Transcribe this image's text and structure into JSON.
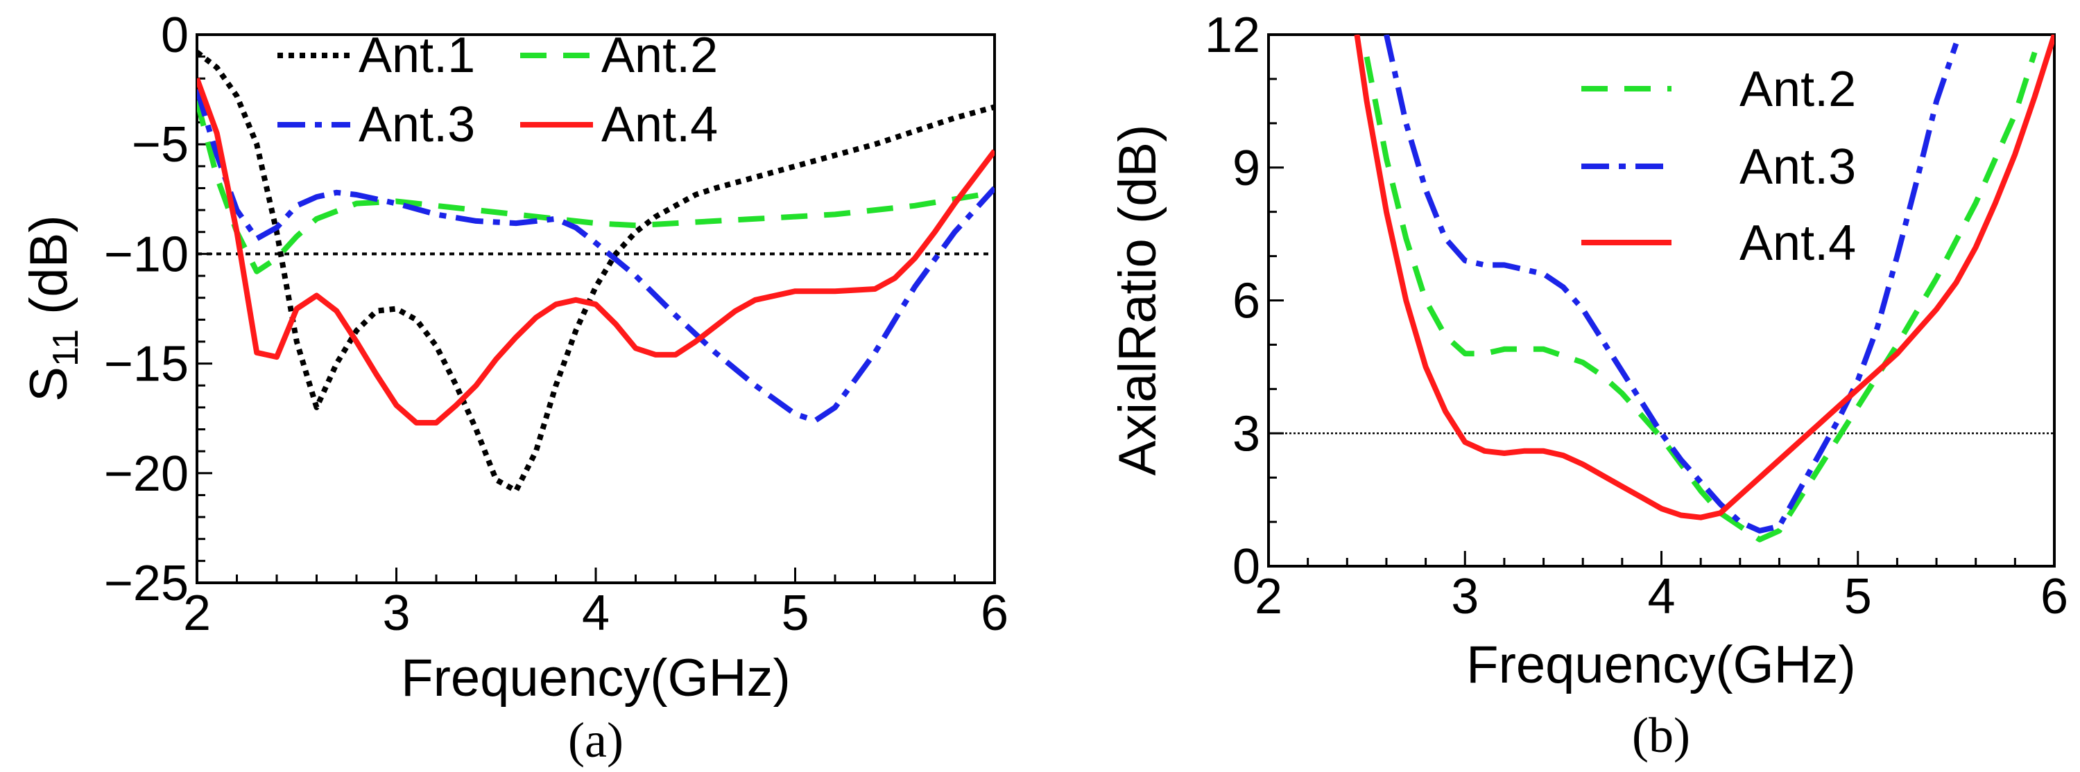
{
  "chart_data": [
    {
      "type": "line",
      "caption": "(a)",
      "xlabel": "Frequency(GHz)",
      "ylabel_main": "S",
      "ylabel_sub": "11",
      "ylabel_unit": " (dB)",
      "xlim": [
        2,
        6
      ],
      "ylim": [
        -25,
        0
      ],
      "xticks": [
        2,
        3,
        4,
        5,
        6
      ],
      "yticks": [
        0,
        -5,
        -10,
        -15,
        -20,
        -25
      ],
      "reference_line": -10,
      "series": [
        {
          "name": "Ant.1",
          "color": "#000000",
          "dash": "dotted",
          "x": [
            2.0,
            2.1,
            2.2,
            2.3,
            2.4,
            2.5,
            2.6,
            2.7,
            2.8,
            2.9,
            3.0,
            3.1,
            3.2,
            3.3,
            3.4,
            3.5,
            3.6,
            3.7,
            3.8,
            3.9,
            4.0,
            4.1,
            4.2,
            4.3,
            4.4,
            4.5,
            4.6,
            4.8,
            5.0,
            5.2,
            5.4,
            5.6,
            5.8,
            6.0
          ],
          "y": [
            -0.8,
            -1.5,
            -2.8,
            -5.0,
            -9.0,
            -14.0,
            -17.0,
            -15.0,
            -13.5,
            -12.6,
            -12.5,
            -13.0,
            -14.2,
            -16.0,
            -18.0,
            -20.3,
            -20.8,
            -19.0,
            -16.0,
            -13.5,
            -11.5,
            -10.0,
            -9.0,
            -8.3,
            -7.8,
            -7.3,
            -7.0,
            -6.5,
            -6.0,
            -5.5,
            -5.0,
            -4.4,
            -3.8,
            -3.3
          ]
        },
        {
          "name": "Ant.2",
          "color": "#22e02b",
          "dash": "dashed",
          "x": [
            2.0,
            2.1,
            2.2,
            2.3,
            2.4,
            2.5,
            2.6,
            2.8,
            3.0,
            3.3,
            3.6,
            3.8,
            4.0,
            4.2,
            4.4,
            4.6,
            4.8,
            5.0,
            5.2,
            5.4,
            5.6,
            5.8,
            6.0
          ],
          "y": [
            -3.0,
            -6.5,
            -9.0,
            -10.8,
            -10.2,
            -9.2,
            -8.4,
            -7.7,
            -7.6,
            -7.9,
            -8.2,
            -8.4,
            -8.6,
            -8.7,
            -8.6,
            -8.5,
            -8.4,
            -8.3,
            -8.2,
            -8.0,
            -7.8,
            -7.5,
            -7.2
          ]
        },
        {
          "name": "Ant.3",
          "color": "#1b24e8",
          "dash": "dashdot",
          "x": [
            2.0,
            2.1,
            2.2,
            2.3,
            2.4,
            2.5,
            2.6,
            2.7,
            2.8,
            3.0,
            3.2,
            3.4,
            3.6,
            3.8,
            3.9,
            4.0,
            4.2,
            4.4,
            4.6,
            4.8,
            5.0,
            5.1,
            5.2,
            5.4,
            5.6,
            5.8,
            6.0
          ],
          "y": [
            -2.5,
            -5.5,
            -8.0,
            -9.3,
            -8.8,
            -7.8,
            -7.4,
            -7.2,
            -7.3,
            -7.7,
            -8.2,
            -8.5,
            -8.6,
            -8.4,
            -8.8,
            -9.5,
            -11.0,
            -12.8,
            -14.5,
            -16.0,
            -17.3,
            -17.6,
            -17.0,
            -14.5,
            -11.5,
            -9.0,
            -7.0
          ]
        },
        {
          "name": "Ant.4",
          "color": "#ff1a1a",
          "dash": "solid",
          "x": [
            2.0,
            2.1,
            2.2,
            2.3,
            2.4,
            2.5,
            2.6,
            2.7,
            2.8,
            2.9,
            3.0,
            3.1,
            3.2,
            3.3,
            3.4,
            3.5,
            3.6,
            3.7,
            3.8,
            3.9,
            4.0,
            4.1,
            4.2,
            4.3,
            4.4,
            4.5,
            4.6,
            4.7,
            4.8,
            5.0,
            5.2,
            5.4,
            5.5,
            5.6,
            5.7,
            5.8,
            5.9,
            6.0
          ],
          "y": [
            -2.0,
            -4.5,
            -9.0,
            -14.5,
            -14.7,
            -12.5,
            -11.9,
            -12.6,
            -14.0,
            -15.5,
            -16.9,
            -17.7,
            -17.7,
            -16.9,
            -16.0,
            -14.8,
            -13.8,
            -12.9,
            -12.3,
            -12.1,
            -12.3,
            -13.2,
            -14.3,
            -14.6,
            -14.6,
            -14.0,
            -13.3,
            -12.6,
            -12.1,
            -11.7,
            -11.7,
            -11.6,
            -11.1,
            -10.2,
            -9.0,
            -7.7,
            -6.5,
            -5.3
          ]
        }
      ],
      "legend": {
        "placement": "top",
        "columns": 2
      }
    },
    {
      "type": "line",
      "caption": "(b)",
      "xlabel": "Frequency(GHz)",
      "ylabel": "AxialRatio (dB)",
      "xlim": [
        2,
        6
      ],
      "ylim": [
        0,
        12
      ],
      "xticks": [
        2,
        3,
        4,
        5,
        6
      ],
      "yticks": [
        0,
        3,
        6,
        9,
        12
      ],
      "reference_line": 3,
      "series": [
        {
          "name": "Ant.2",
          "color": "#22e02b",
          "dash": "dashed",
          "x": [
            2.5,
            2.6,
            2.7,
            2.8,
            2.9,
            3.0,
            3.1,
            3.2,
            3.4,
            3.6,
            3.7,
            3.8,
            3.9,
            4.0,
            4.1,
            4.2,
            4.3,
            4.4,
            4.5,
            4.6,
            4.7,
            4.8,
            4.9,
            5.0,
            5.2,
            5.4,
            5.6,
            5.8,
            5.9
          ],
          "y": [
            11.5,
            9.2,
            7.4,
            6.0,
            5.2,
            4.8,
            4.8,
            4.9,
            4.9,
            4.6,
            4.3,
            3.9,
            3.4,
            2.9,
            2.3,
            1.7,
            1.2,
            0.9,
            0.6,
            0.8,
            1.5,
            2.2,
            2.9,
            3.6,
            5.0,
            6.5,
            8.2,
            10.2,
            11.6
          ]
        },
        {
          "name": "Ant.3",
          "color": "#1b24e8",
          "dash": "dashdot",
          "x": [
            2.6,
            2.7,
            2.8,
            2.9,
            3.0,
            3.1,
            3.2,
            3.4,
            3.5,
            3.6,
            3.7,
            3.8,
            3.9,
            4.0,
            4.1,
            4.2,
            4.3,
            4.4,
            4.5,
            4.6,
            4.7,
            4.8,
            4.9,
            5.0,
            5.1,
            5.2,
            5.3,
            5.4,
            5.5
          ],
          "y": [
            12.0,
            10.0,
            8.5,
            7.4,
            6.9,
            6.8,
            6.8,
            6.6,
            6.3,
            5.8,
            5.1,
            4.4,
            3.7,
            3.0,
            2.4,
            1.9,
            1.4,
            1.0,
            0.8,
            0.9,
            1.7,
            2.5,
            3.3,
            4.2,
            5.4,
            7.0,
            8.7,
            10.5,
            11.8
          ]
        },
        {
          "name": "Ant.4",
          "color": "#ff1a1a",
          "dash": "solid",
          "x": [
            2.45,
            2.5,
            2.6,
            2.7,
            2.8,
            2.9,
            3.0,
            3.1,
            3.2,
            3.3,
            3.4,
            3.5,
            3.6,
            3.7,
            3.8,
            3.9,
            4.0,
            4.1,
            4.2,
            4.3,
            4.4,
            4.5,
            4.6,
            4.7,
            4.8,
            4.9,
            5.0,
            5.1,
            5.2,
            5.3,
            5.4,
            5.5,
            5.6,
            5.7,
            5.8,
            5.9,
            6.0
          ],
          "y": [
            12.0,
            10.5,
            8.0,
            6.0,
            4.5,
            3.5,
            2.8,
            2.6,
            2.55,
            2.6,
            2.6,
            2.5,
            2.3,
            2.05,
            1.8,
            1.55,
            1.3,
            1.15,
            1.1,
            1.2,
            1.6,
            2.0,
            2.4,
            2.8,
            3.2,
            3.6,
            4.0,
            4.4,
            4.8,
            5.3,
            5.8,
            6.4,
            7.2,
            8.2,
            9.3,
            10.6,
            12.0
          ]
        }
      ],
      "legend": {
        "placement": "top-right",
        "columns": 1
      }
    }
  ]
}
